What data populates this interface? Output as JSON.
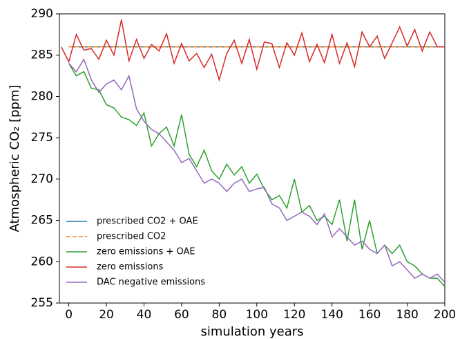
{
  "chart_data": {
    "type": "line",
    "xlabel": "simulation years",
    "ylabel": "Atmospheric CO₂ [ppm]",
    "xlim": [
      -5,
      200
    ],
    "ylim": [
      255,
      290
    ],
    "xticks": [
      0,
      20,
      40,
      60,
      80,
      100,
      120,
      140,
      160,
      180,
      200
    ],
    "yticks": [
      255,
      260,
      265,
      270,
      275,
      280,
      285,
      290
    ],
    "legend": "lower left",
    "x": [
      -4,
      0,
      4,
      8,
      12,
      16,
      20,
      24,
      28,
      32,
      36,
      40,
      44,
      48,
      52,
      56,
      60,
      64,
      68,
      72,
      76,
      80,
      84,
      88,
      92,
      96,
      100,
      104,
      108,
      112,
      116,
      120,
      124,
      128,
      132,
      136,
      140,
      144,
      148,
      152,
      156,
      160,
      164,
      168,
      172,
      176,
      180,
      184,
      188,
      192,
      196,
      200
    ],
    "series": [
      {
        "name": "prescribed CO2 + OAE",
        "color": "#1f77b4",
        "linestyle": "solid",
        "values": [
          null,
          286,
          286,
          286,
          286,
          286,
          286,
          286,
          286,
          286,
          286,
          286,
          286,
          286,
          286,
          286,
          286,
          286,
          286,
          286,
          286,
          286,
          286,
          286,
          286,
          286,
          286,
          286,
          286,
          286,
          286,
          286,
          286,
          286,
          286,
          286,
          286,
          286,
          286,
          286,
          286,
          286,
          286,
          286,
          286,
          286,
          286,
          286,
          286,
          286,
          286,
          286
        ]
      },
      {
        "name": "prescribed CO2",
        "color": "#ff7f0e",
        "linestyle": "dashed",
        "values": [
          null,
          286,
          286,
          286,
          286,
          286,
          286,
          286,
          286,
          286,
          286,
          286,
          286,
          286,
          286,
          286,
          286,
          286,
          286,
          286,
          286,
          286,
          286,
          286,
          286,
          286,
          286,
          286,
          286,
          286,
          286,
          286,
          286,
          286,
          286,
          286,
          286,
          286,
          286,
          286,
          286,
          286,
          286,
          286,
          286,
          286,
          286,
          286,
          286,
          286,
          286,
          286
        ]
      },
      {
        "name": "zero emissions + OAE",
        "color": "#2ca02c",
        "linestyle": "solid",
        "values": [
          null,
          284.0,
          282.5,
          283.0,
          281.0,
          280.8,
          279.0,
          278.6,
          277.5,
          277.2,
          276.5,
          278.0,
          274.0,
          275.5,
          276.3,
          274.0,
          277.8,
          273.0,
          271.5,
          273.5,
          271.0,
          270.0,
          271.8,
          270.5,
          271.5,
          269.5,
          270.6,
          268.8,
          267.5,
          268.0,
          266.5,
          270.0,
          266.0,
          266.8,
          265.0,
          265.5,
          264.5,
          267.5,
          262.5,
          267.5,
          261.5,
          265.0,
          261.0,
          262.0,
          261.0,
          262.0,
          260.0,
          259.5,
          258.5,
          258.0,
          258.0,
          257.0
        ]
      },
      {
        "name": "zero emissions",
        "color": "#d62728",
        "linestyle": "solid",
        "values": [
          286.0,
          284.2,
          287.5,
          285.6,
          285.8,
          284.5,
          286.8,
          285.0,
          289.3,
          284.3,
          286.9,
          284.6,
          286.3,
          285.5,
          287.6,
          284.0,
          286.4,
          284.3,
          285.2,
          283.5,
          285.1,
          282.0,
          285.2,
          286.8,
          284.0,
          286.9,
          283.3,
          286.6,
          286.4,
          283.5,
          286.5,
          285.0,
          287.7,
          284.2,
          286.3,
          284.1,
          287.5,
          284.0,
          286.5,
          283.6,
          287.8,
          286.0,
          287.3,
          284.6,
          286.5,
          288.4,
          286.1,
          288.1,
          285.5,
          287.8,
          286.0,
          286.0
        ]
      },
      {
        "name": "DAC negative emissions",
        "color": "#9467bd",
        "linestyle": "solid",
        "values": [
          null,
          284.0,
          283.0,
          284.5,
          282.0,
          280.5,
          281.5,
          282.0,
          280.8,
          282.5,
          278.5,
          277.0,
          276.0,
          275.5,
          274.5,
          273.5,
          272.0,
          272.5,
          271.0,
          269.5,
          270.0,
          269.5,
          268.5,
          269.5,
          270.0,
          268.5,
          268.8,
          269.0,
          267.0,
          266.5,
          265.0,
          265.5,
          266.0,
          265.5,
          264.5,
          265.8,
          263.0,
          264.0,
          263.0,
          262.0,
          262.5,
          261.5,
          261.0,
          262.0,
          259.5,
          260.0,
          259.0,
          258.0,
          258.5,
          258.0,
          258.5,
          257.5
        ]
      }
    ]
  }
}
